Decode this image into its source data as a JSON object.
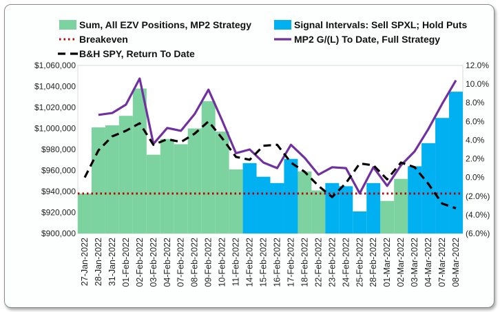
{
  "chart_data": {
    "type": "bar+line",
    "categories": [
      "27-Jan-2022",
      "28-Jan-2022",
      "31-Jan-2022",
      "01-Feb-2022",
      "02-Feb-2022",
      "03-Feb-2022",
      "04-Feb-2022",
      "07-Feb-2022",
      "08-Feb-2022",
      "09-Feb-2022",
      "10-Feb-2022",
      "11-Feb-2022",
      "14-Feb-2022",
      "15-Feb-2022",
      "16-Feb-2022",
      "17-Feb-2022",
      "18-Feb-2022",
      "22-Feb-2022",
      "23-Feb-2022",
      "24-Feb-2022",
      "25-Feb-2022",
      "28-Feb-2022",
      "01-Mar-2022",
      "02-Mar-2022",
      "03-Mar-2022",
      "04-Mar-2022",
      "07-Mar-2022",
      "08-Mar-2022"
    ],
    "left_axis": {
      "ylim": [
        900000,
        1060000
      ],
      "ticks": [
        "$900,000",
        "$920,000",
        "$940,000",
        "$960,000",
        "$980,000",
        "$1,000,000",
        "$1,020,000",
        "$1,040,000",
        "$1,060,000"
      ]
    },
    "right_axis": {
      "ylim": [
        -6.0,
        12.0
      ],
      "ticks": [
        "(6.0%)",
        "(4.0%)",
        "(2.0%)",
        "0.0%",
        "2.0%",
        "4.0%",
        "6.0%",
        "8.0%",
        "10.0%",
        "12.0%"
      ]
    },
    "series": [
      {
        "name": "Sum, All EZV Positions, MP2 Strategy",
        "kind": "bar",
        "axis": "left",
        "color": "#7dd3a0",
        "values": [
          938000,
          1001000,
          1003000,
          1012000,
          1038000,
          975000,
          990000,
          985000,
          1000000,
          1026000,
          997000,
          961000,
          null,
          null,
          null,
          null,
          959000,
          941000,
          null,
          null,
          null,
          null,
          931000,
          952000,
          null,
          null,
          null,
          null
        ]
      },
      {
        "name": "Signal Intervals: Sell SPXL; Hold Puts",
        "kind": "bar",
        "axis": "left",
        "color": "#00b0f0",
        "values": [
          null,
          null,
          null,
          null,
          null,
          null,
          null,
          null,
          null,
          null,
          null,
          null,
          967000,
          954000,
          948000,
          971000,
          null,
          null,
          948000,
          945000,
          921000,
          948000,
          null,
          null,
          964000,
          986000,
          1010000,
          1035000
        ]
      },
      {
        "name": "Breakeven",
        "kind": "dotted-line",
        "axis": "left",
        "color": "#c00000",
        "value": 938000
      },
      {
        "name": "MP2 G/(L) To Date, Full Strategy",
        "kind": "line",
        "axis": "right",
        "color": "#7030a0",
        "values": [
          null,
          6.7,
          6.9,
          7.8,
          10.6,
          3.6,
          5.3,
          5.0,
          6.8,
          9.4,
          6.1,
          2.6,
          3.0,
          1.6,
          1.0,
          3.5,
          2.1,
          0.3,
          1.1,
          1.0,
          -1.7,
          1.1,
          -0.9,
          1.3,
          2.8,
          5.2,
          7.9,
          10.4
        ]
      },
      {
        "name": "B&H SPY, Return To Date",
        "kind": "dashed-line",
        "axis": "right",
        "color": "#000000",
        "values": [
          0.0,
          2.9,
          4.4,
          5.0,
          5.8,
          3.5,
          4.1,
          3.8,
          4.7,
          6.0,
          4.2,
          2.2,
          1.9,
          3.4,
          3.5,
          1.6,
          0.6,
          -0.9,
          -2.1,
          -0.6,
          1.5,
          1.3,
          -0.2,
          1.6,
          1.1,
          -0.7,
          -2.8,
          -3.3
        ]
      }
    ]
  }
}
